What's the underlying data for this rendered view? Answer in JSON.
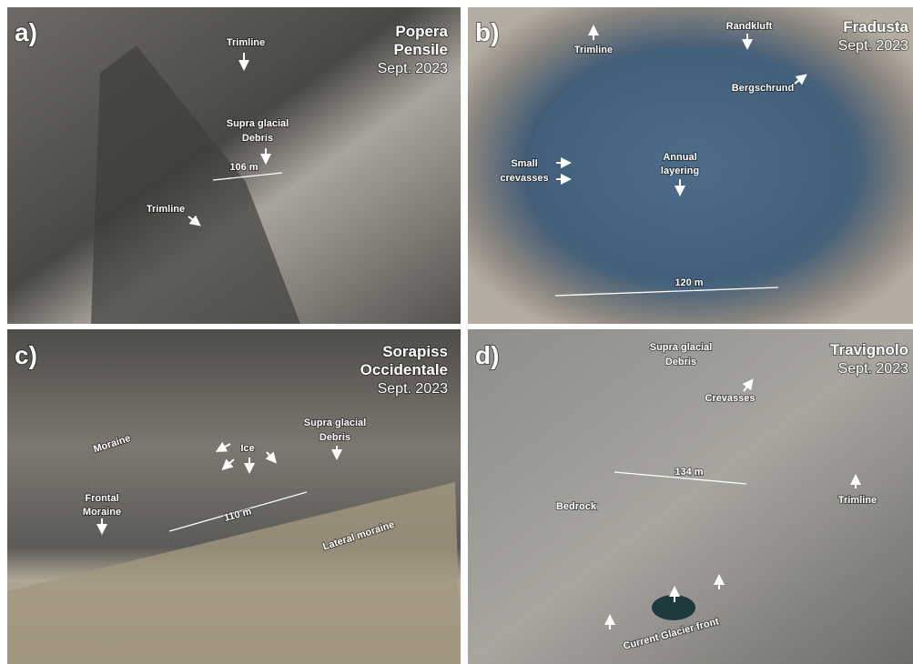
{
  "panels": [
    {
      "label": "a)",
      "title": [
        "Popera",
        "Pensile"
      ],
      "date": "Sept. 2023",
      "annotations": [
        "Trimline",
        "Supra glacial",
        "Debris",
        "106 m",
        "Trimline"
      ]
    },
    {
      "label": "b)",
      "title": [
        "Fradusta"
      ],
      "date": "Sept. 2023",
      "annotations": [
        "Trimline",
        "Randkluft",
        "Bergschrund",
        "Small",
        "crevasses",
        "Annual",
        "layering",
        "120 m"
      ]
    },
    {
      "label": "c)",
      "title": [
        "Sorapiss",
        "Occidentale"
      ],
      "date": "Sept. 2023",
      "annotations": [
        "Moraine",
        "Ice",
        "Supra glacial",
        "Debris",
        "Frontal",
        "Moraine",
        "110 m",
        "Lateral moraine"
      ]
    },
    {
      "label": "d)",
      "title": [
        "Travignolo"
      ],
      "date": "Sept. 2023",
      "annotations": [
        "Supra glacial",
        "Debris",
        "Crevasses",
        "134 m",
        "Bedrock",
        "Trimline",
        "Current Glacier front"
      ]
    }
  ]
}
